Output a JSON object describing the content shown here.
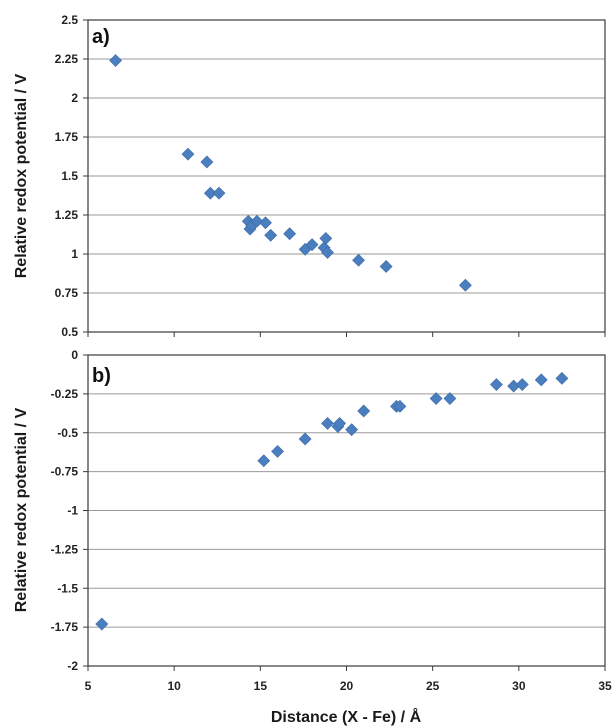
{
  "chart_data": [
    {
      "type": "scatter",
      "panel_label": "a)",
      "ylabel": "Relative redox potential / V",
      "xlabel": "",
      "xlim": [
        5,
        35
      ],
      "ylim": [
        0.5,
        2.5
      ],
      "x_ticks": [
        "5",
        "10",
        "15",
        "20",
        "25",
        "30",
        "35"
      ],
      "y_ticks": [
        "0.5",
        "0.75",
        "1",
        "1.25",
        "1.5",
        "1.75",
        "2",
        "2.25",
        "2.5"
      ],
      "grid": true,
      "marker_color": "#4a7ebf",
      "points": [
        {
          "x": 6.6,
          "y": 2.24
        },
        {
          "x": 10.8,
          "y": 1.64
        },
        {
          "x": 11.9,
          "y": 1.59
        },
        {
          "x": 12.1,
          "y": 1.39
        },
        {
          "x": 12.6,
          "y": 1.39
        },
        {
          "x": 14.3,
          "y": 1.21
        },
        {
          "x": 14.4,
          "y": 1.16
        },
        {
          "x": 14.5,
          "y": 1.18
        },
        {
          "x": 14.8,
          "y": 1.21
        },
        {
          "x": 15.3,
          "y": 1.2
        },
        {
          "x": 15.6,
          "y": 1.12
        },
        {
          "x": 16.7,
          "y": 1.13
        },
        {
          "x": 17.6,
          "y": 1.03
        },
        {
          "x": 18.0,
          "y": 1.06
        },
        {
          "x": 18.7,
          "y": 1.04
        },
        {
          "x": 18.8,
          "y": 1.1
        },
        {
          "x": 18.9,
          "y": 1.01
        },
        {
          "x": 20.7,
          "y": 0.96
        },
        {
          "x": 22.3,
          "y": 0.92
        },
        {
          "x": 26.9,
          "y": 0.8
        }
      ]
    },
    {
      "type": "scatter",
      "panel_label": "b)",
      "ylabel": "Relative redox potential / V",
      "xlabel": "Distance (X - Fe) / Å",
      "xlim": [
        5,
        35
      ],
      "ylim": [
        -2,
        0
      ],
      "x_ticks": [
        "5",
        "10",
        "15",
        "20",
        "25",
        "30",
        "35"
      ],
      "y_ticks": [
        "-2",
        "-1.75",
        "-1.5",
        "-1.25",
        "-1",
        "-0.75",
        "-0.5",
        "-0.25",
        "0"
      ],
      "grid": true,
      "marker_color": "#4a7ebf",
      "points": [
        {
          "x": 5.8,
          "y": -1.73
        },
        {
          "x": 15.2,
          "y": -0.68
        },
        {
          "x": 16.0,
          "y": -0.62
        },
        {
          "x": 17.6,
          "y": -0.54
        },
        {
          "x": 18.9,
          "y": -0.44
        },
        {
          "x": 19.5,
          "y": -0.46
        },
        {
          "x": 19.6,
          "y": -0.44
        },
        {
          "x": 20.3,
          "y": -0.48
        },
        {
          "x": 21.0,
          "y": -0.36
        },
        {
          "x": 22.9,
          "y": -0.33
        },
        {
          "x": 23.1,
          "y": -0.33
        },
        {
          "x": 25.2,
          "y": -0.28
        },
        {
          "x": 26.0,
          "y": -0.28
        },
        {
          "x": 28.7,
          "y": -0.19
        },
        {
          "x": 29.7,
          "y": -0.2
        },
        {
          "x": 30.2,
          "y": -0.19
        },
        {
          "x": 31.3,
          "y": -0.16
        },
        {
          "x": 32.5,
          "y": -0.15
        }
      ]
    }
  ]
}
